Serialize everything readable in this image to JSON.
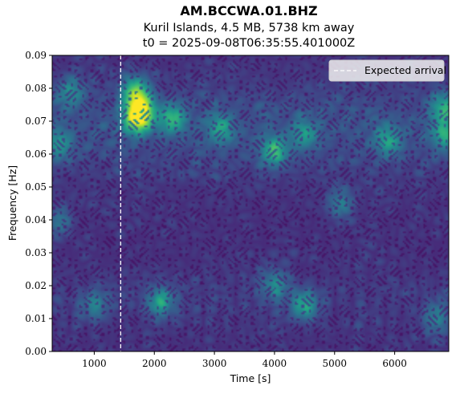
{
  "chart_data": {
    "type": "heatmap",
    "title": "AM.BCCWA.01.BHZ",
    "subtitle_line1": "Kuril Islands, 4.5 MB, 5738 km away",
    "subtitle_line2": "t0 = 2025-09-08T06:35:55.401000Z",
    "xlabel": "Time [s]",
    "ylabel": "Frequency [Hz]",
    "xlim": [
      300,
      6900
    ],
    "ylim": [
      0.0,
      0.09
    ],
    "xticks": [
      1000,
      2000,
      3000,
      4000,
      5000,
      6000
    ],
    "xtick_labels": [
      "1000",
      "2000",
      "3000",
      "4000",
      "5000",
      "6000"
    ],
    "yticks": [
      0.0,
      0.01,
      0.02,
      0.03,
      0.04,
      0.05,
      0.06,
      0.07,
      0.08,
      0.09
    ],
    "ytick_labels": [
      "0.00",
      "0.01",
      "0.02",
      "0.03",
      "0.04",
      "0.05",
      "0.06",
      "0.07",
      "0.08",
      "0.09"
    ],
    "colormap": "viridis",
    "expected_arrival_s": 1440,
    "legend": {
      "label": "Expected arrival",
      "placement": "top-right"
    },
    "hotspots": [
      {
        "t": 1700,
        "f": 0.071,
        "intensity": 0.95
      },
      {
        "t": 1680,
        "f": 0.079,
        "intensity": 0.75
      },
      {
        "t": 1800,
        "f": 0.074,
        "intensity": 0.6
      },
      {
        "t": 2300,
        "f": 0.071,
        "intensity": 0.55
      },
      {
        "t": 3100,
        "f": 0.068,
        "intensity": 0.45
      },
      {
        "t": 4000,
        "f": 0.061,
        "intensity": 0.6
      },
      {
        "t": 4500,
        "f": 0.066,
        "intensity": 0.4
      },
      {
        "t": 5900,
        "f": 0.064,
        "intensity": 0.45
      },
      {
        "t": 6850,
        "f": 0.074,
        "intensity": 0.55
      },
      {
        "t": 6850,
        "f": 0.066,
        "intensity": 0.5
      },
      {
        "t": 600,
        "f": 0.079,
        "intensity": 0.4
      },
      {
        "t": 400,
        "f": 0.063,
        "intensity": 0.4
      },
      {
        "t": 2100,
        "f": 0.015,
        "intensity": 0.5
      },
      {
        "t": 4500,
        "f": 0.014,
        "intensity": 0.55
      },
      {
        "t": 4000,
        "f": 0.02,
        "intensity": 0.4
      },
      {
        "t": 5100,
        "f": 0.045,
        "intensity": 0.35
      },
      {
        "t": 6700,
        "f": 0.01,
        "intensity": 0.35
      },
      {
        "t": 1000,
        "f": 0.014,
        "intensity": 0.35
      },
      {
        "t": 400,
        "f": 0.04,
        "intensity": 0.3
      }
    ]
  }
}
